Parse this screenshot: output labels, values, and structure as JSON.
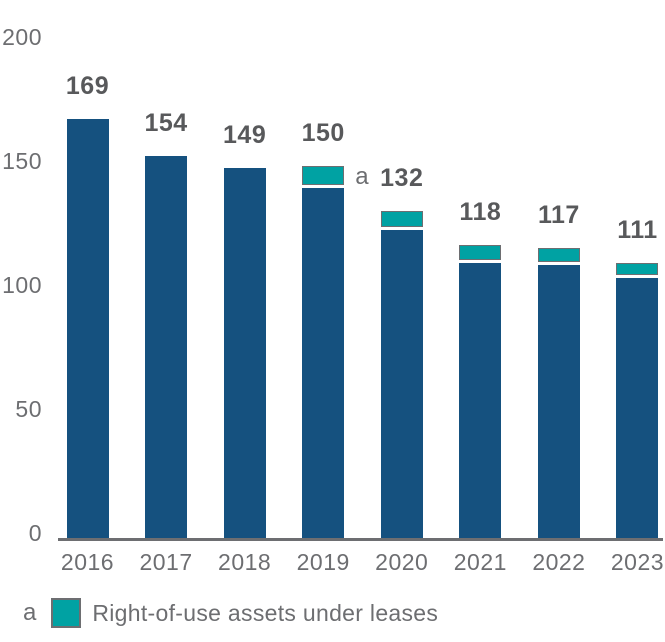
{
  "page": {
    "background": "#ffffff"
  },
  "chart_data": {
    "type": "bar",
    "stacked": true,
    "title": "",
    "categories": [
      "2016",
      "2017",
      "2018",
      "2019",
      "2020",
      "2021",
      "2022",
      "2023"
    ],
    "totals": [
      169,
      154,
      149,
      150,
      132,
      118,
      117,
      111
    ],
    "bar_labels": [
      "169",
      "154",
      "149",
      "150",
      "132",
      "118",
      "117",
      "111"
    ],
    "series": [
      {
        "name": "",
        "color": "#15517f",
        "values": [
          169,
          154,
          149,
          141,
          124,
          111,
          110,
          105
        ]
      },
      {
        "name": "Right-of-use assets under leases",
        "color": "#00a2a3",
        "values": [
          0,
          0,
          0,
          9,
          8,
          7,
          7,
          6
        ]
      }
    ],
    "yticks": [
      0,
      50,
      100,
      150,
      200
    ],
    "ylim": [
      0,
      200
    ],
    "grid": false,
    "annotation": {
      "marker": "a",
      "category": "2019"
    },
    "legend": {
      "marker": "a",
      "label": "Right-of-use assets under leases",
      "swatch_color": "#00a2a3",
      "position": "bottom-left"
    },
    "colors": {
      "bar": "#15517f",
      "segment": "#00a2a3",
      "segment_border": "#6d6e71",
      "axis_line": "#6d6e71",
      "axis_text": "#6d6e71",
      "value_text": "#58595b"
    }
  }
}
